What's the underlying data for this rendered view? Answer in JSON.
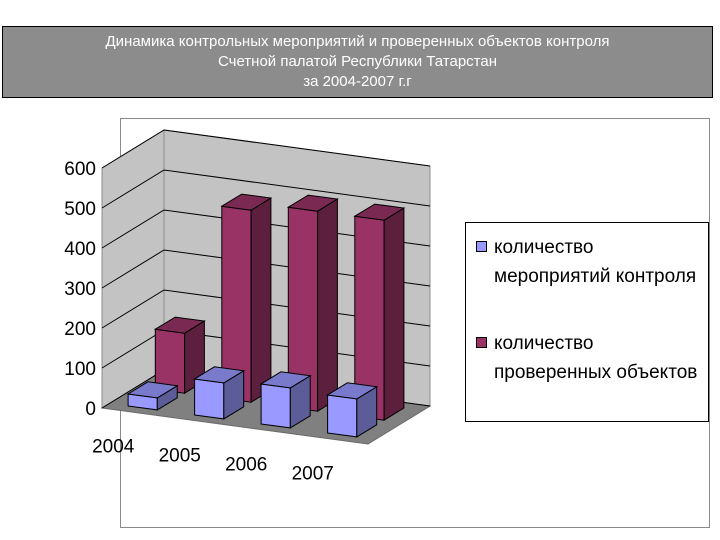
{
  "slide": {
    "title_lines": [
      "Динамика контрольных мероприятий и проверенных объектов контроля",
      "Счетной палатой Республики Татарстан",
      "за 2004-2007 г.г"
    ]
  },
  "chart_data": {
    "type": "bar",
    "title": "",
    "xlabel": "",
    "ylabel": "",
    "categories": [
      "2004",
      "2005",
      "2006",
      "2007"
    ],
    "ylim": [
      0,
      600
    ],
    "yticks": [
      0,
      100,
      200,
      300,
      400,
      500,
      600
    ],
    "grid": true,
    "legend_position": "right",
    "series": [
      {
        "name": "количество мероприятий контроля",
        "values": [
          30,
          90,
          100,
          95
        ],
        "color": "#9999ff"
      },
      {
        "name": "количество проверенных объектов",
        "values": [
          150,
          480,
          500,
          500
        ],
        "color": "#993366"
      }
    ]
  }
}
